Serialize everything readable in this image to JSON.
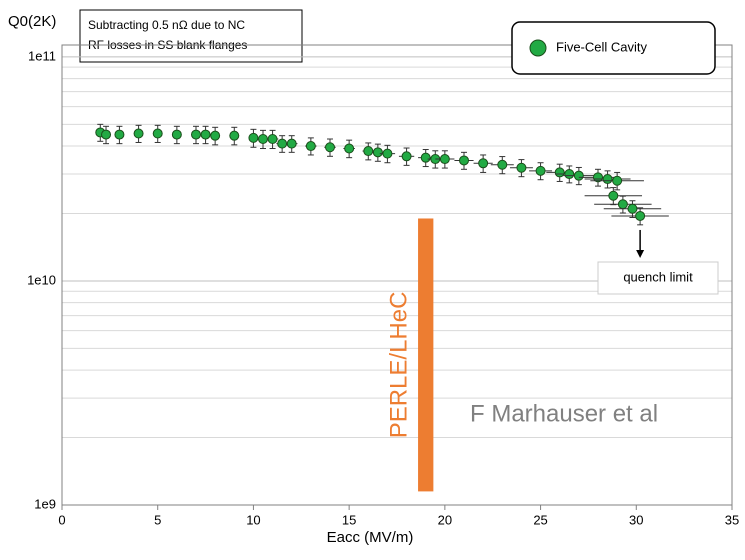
{
  "chart_data": {
    "type": "scatter",
    "y_title": "Q0(2K)",
    "x_title": "Eacc (MV/m)",
    "note": [
      "Subtracting 0.5 nΩ due to NC",
      "RF losses in SS blank flanges"
    ],
    "annotation": "quench limit",
    "credit": "F Marhauser et al",
    "band": {
      "label": "PERLE/LHeC",
      "x": [
        18.6,
        19.4
      ],
      "y": [
        1150000000,
        19000000000
      ],
      "color": "#ed7d31"
    },
    "log_y": true,
    "grid": true,
    "legend": "top-right",
    "xlim": [
      0,
      35
    ],
    "xticks": [
      0,
      5,
      10,
      15,
      20,
      25,
      30,
      35
    ],
    "ylim": [
      1000000000,
      113000000000
    ],
    "yticks": [
      {
        "value": 1000000000,
        "label": "1e9"
      },
      {
        "value": 10000000000,
        "label": "1e10"
      },
      {
        "value": 100000000000,
        "label": "1e11"
      }
    ],
    "yminorticks": [
      2000000000,
      3000000000,
      4000000000,
      5000000000,
      6000000000,
      7000000000,
      8000000000,
      9000000000,
      20000000000,
      30000000000,
      40000000000,
      50000000000,
      60000000000,
      70000000000,
      80000000000,
      90000000000
    ],
    "series": [
      {
        "name": "Five-Cell Cavity",
        "color": "#22aa44",
        "x": [
          2,
          2.3,
          3,
          4,
          5,
          6,
          7,
          7.5,
          8,
          9,
          10,
          10.5,
          11,
          11.5,
          12,
          13,
          14,
          15,
          16,
          16.5,
          17,
          18,
          19,
          19.5,
          20,
          21,
          22,
          23,
          24,
          25,
          26,
          26.5,
          27,
          28,
          28.5,
          29,
          28.8,
          29.3,
          29.8,
          30.2
        ],
        "values": [
          46000000000,
          45000000000,
          45000000000,
          45500000000,
          45500000000,
          45000000000,
          45000000000,
          45000000000,
          44500000000,
          44500000000,
          43500000000,
          43000000000,
          43000000000,
          41000000000,
          41000000000,
          40000000000,
          39500000000,
          39000000000,
          38000000000,
          37500000000,
          37000000000,
          36000000000,
          35500000000,
          35000000000,
          35000000000,
          34500000000,
          33500000000,
          33000000000,
          32000000000,
          31000000000,
          30500000000,
          30000000000,
          29500000000,
          29000000000,
          28500000000,
          28000000000,
          24000000000,
          22000000000,
          21000000000,
          19500000000
        ],
        "yerr": [
          4000000000,
          4000000000,
          4000000000,
          4000000000,
          4000000000,
          4000000000,
          4000000000,
          4000000000,
          4000000000,
          4000000000,
          4000000000,
          4000000000,
          4000000000,
          3500000000,
          3500000000,
          3500000000,
          3500000000,
          3500000000,
          3300000000,
          3300000000,
          3300000000,
          3200000000,
          3100000000,
          3100000000,
          3100000000,
          3000000000,
          3000000000,
          2900000000,
          2800000000,
          2700000000,
          2700000000,
          2600000000,
          2600000000,
          2500000000,
          2500000000,
          2500000000,
          2100000000,
          1900000000,
          1800000000,
          1700000000
        ],
        "xerr": [
          0.2,
          0.2,
          0.2,
          0.2,
          0.2,
          0.2,
          0.2,
          0.2,
          0.2,
          0.2,
          0.2,
          0.2,
          0.3,
          0.3,
          0.3,
          0.3,
          0.3,
          0.3,
          0.3,
          0.3,
          0.4,
          0.4,
          0.4,
          0.4,
          0.5,
          0.5,
          0.5,
          0.6,
          0.6,
          0.6,
          0.7,
          0.7,
          0.8,
          1.0,
          1.2,
          1.4,
          1.5,
          1.5,
          1.5,
          1.5
        ]
      }
    ]
  }
}
